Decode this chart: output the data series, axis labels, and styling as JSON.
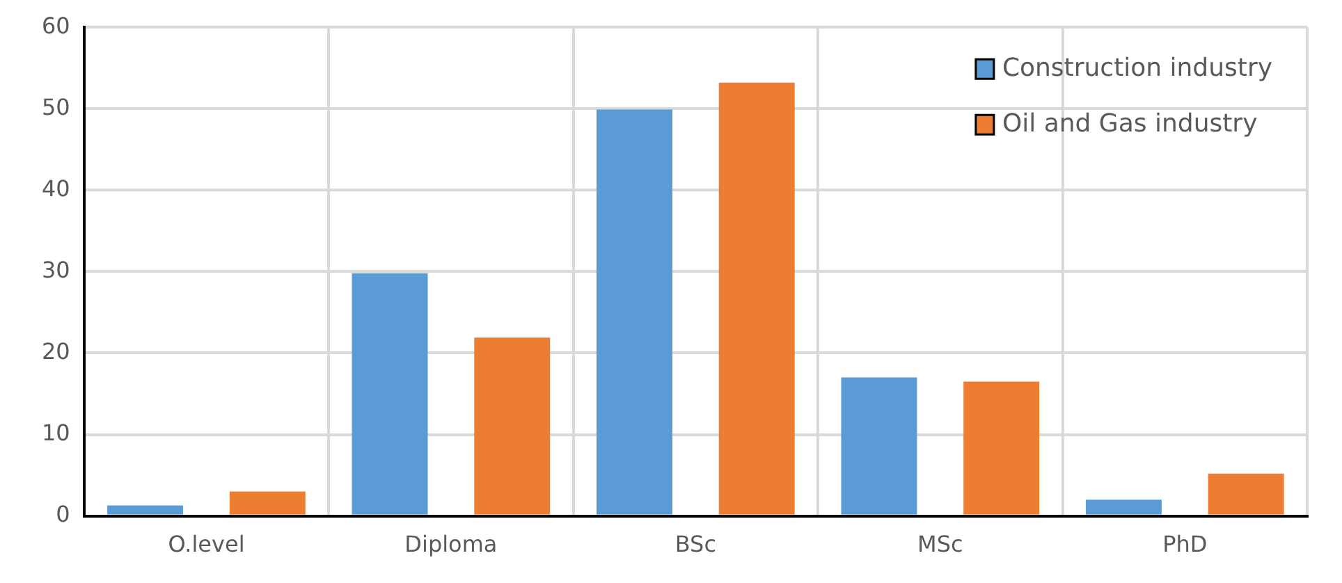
{
  "chart_data": {
    "type": "bar",
    "categories": [
      "O.level",
      "Diploma",
      "BSc",
      "MSc",
      "PhD"
    ],
    "series": [
      {
        "name": "Construction industry",
        "color": "#5b9bd5",
        "values": [
          1.3,
          29.8,
          49.9,
          17,
          2
        ]
      },
      {
        "name": "Oil and Gas industry",
        "color": "#ed7d31",
        "values": [
          3,
          21.9,
          53.2,
          16.5,
          5.2
        ]
      }
    ],
    "ylim": [
      0,
      60
    ],
    "yticks": [
      0,
      10,
      20,
      30,
      40,
      50,
      60
    ],
    "grid": true,
    "legend": "top right"
  }
}
